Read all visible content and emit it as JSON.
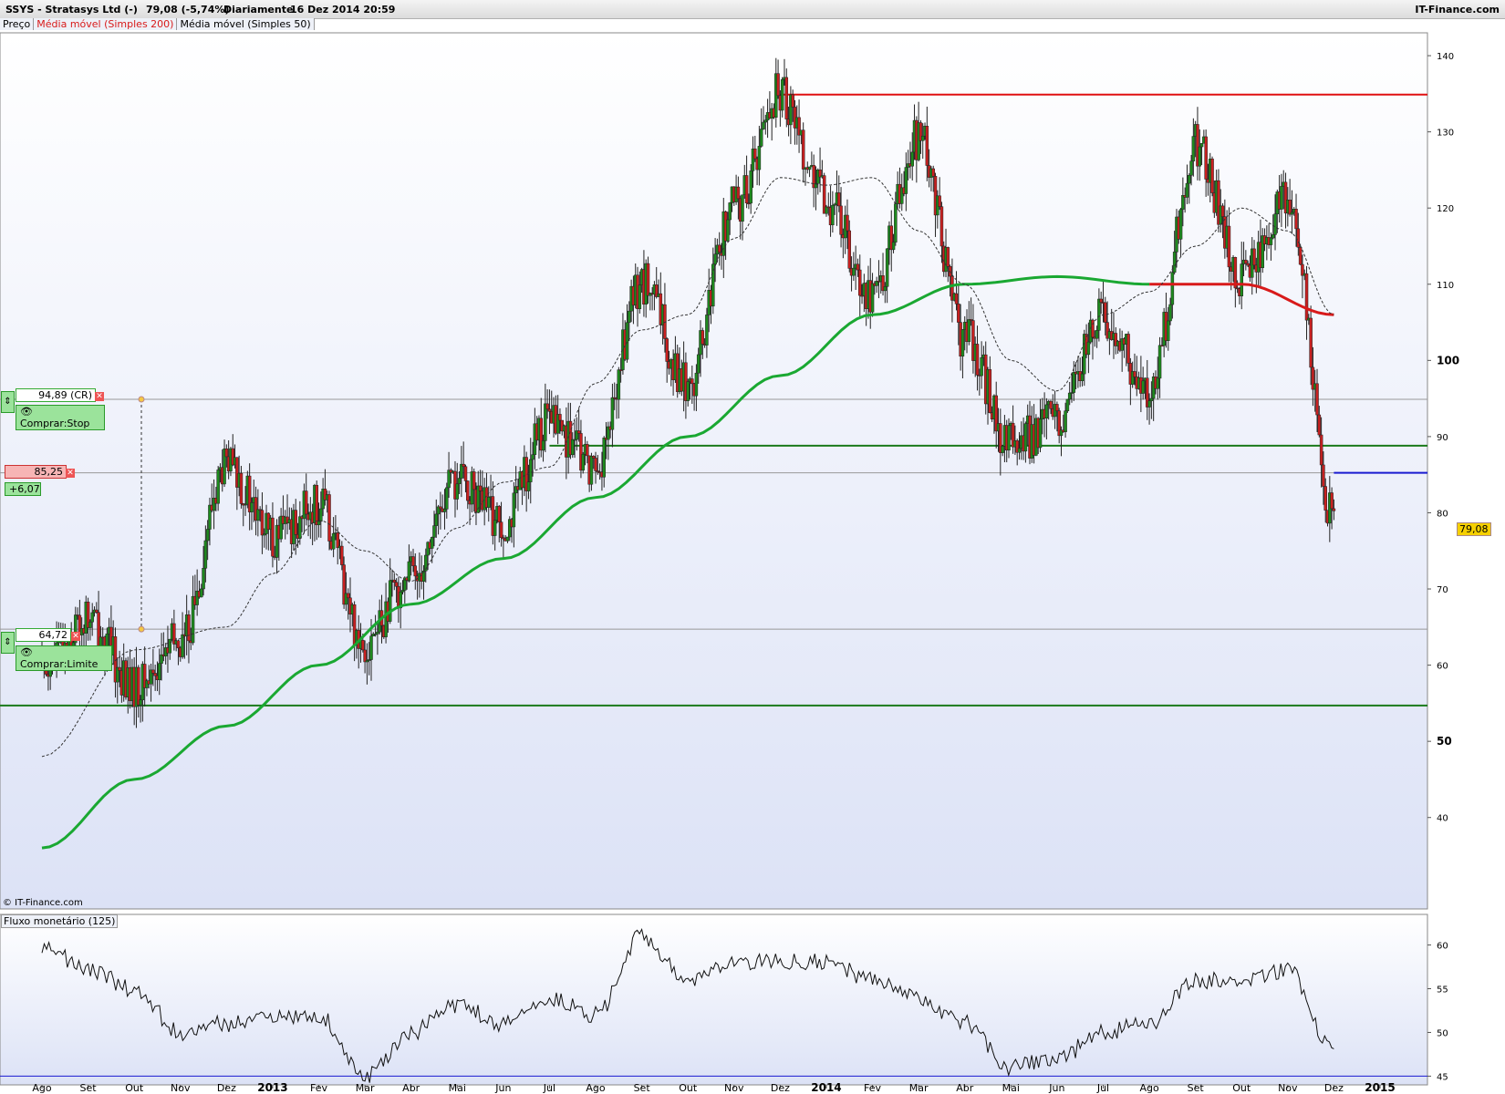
{
  "header": {
    "symbol": "SSYS - Stratasys Ltd (-)",
    "price": "79,08 (-5,74%)",
    "period": "Diariamente",
    "datetime": "16 Dez 2014 20:59",
    "brand": "IT-Finance.com"
  },
  "legend": {
    "price": "Preço",
    "ma200": "Média móvel (Simples 200)",
    "ma50": "Média móvel (Simples 50)"
  },
  "colors": {
    "ma200_up": "#1aa832",
    "ma200_down": "#d81a1a",
    "ma50": "#333333",
    "bg_top": "#ffffff",
    "bg_bottom": "#dce2f6",
    "candle_up": "#1e8a1e",
    "candle_down": "#c82020",
    "hline_green": "#1a7a1a",
    "hline_red": "#e01010",
    "hline_blue": "#1a1ad0"
  },
  "credit": "© IT-Finance.com",
  "orders": {
    "stop_value": "94,89 (CR)",
    "stop_label": "Comprar:Stop",
    "current_value": "85,25",
    "current_delta": "+6,07",
    "limit_value": "64,72",
    "limit_label": "Comprar:Limite",
    "last_price": "79,08"
  },
  "chart_data": [
    {
      "type": "candlestick",
      "title": "SSYS - Stratasys Ltd (-)",
      "xlabel": "",
      "ylabel": "",
      "x_ticks": [
        "Ago",
        "Set",
        "Out",
        "Nov",
        "Dez",
        "2013",
        "Fev",
        "Mar",
        "Abr",
        "Mai",
        "Jun",
        "Jul",
        "Ago",
        "Set",
        "Out",
        "Nov",
        "Dez",
        "2014",
        "Fev",
        "Mar",
        "Abr",
        "Mai",
        "Jun",
        "Jul",
        "Ago",
        "Set",
        "Out",
        "Nov",
        "Dez",
        "2015"
      ],
      "y_ticks": [
        40,
        50,
        60,
        70,
        80,
        90,
        100,
        110,
        120,
        130,
        140
      ],
      "ylim": [
        28,
        143
      ],
      "grid": false,
      "horizontal_lines": [
        {
          "value": 134.9,
          "color": "red",
          "from": "Dez 2013"
        },
        {
          "value": 94.89,
          "color": "gray"
        },
        {
          "value": 88.8,
          "color": "green",
          "from": "Jul 2013"
        },
        {
          "value": 85.25,
          "color": "gray"
        },
        {
          "value": 85.25,
          "color": "blue",
          "from": "Dez 2014"
        },
        {
          "value": 64.72,
          "color": "gray"
        },
        {
          "value": 54.7,
          "color": "green"
        }
      ],
      "series": [
        {
          "name": "Preço",
          "x": [
            "Ago 2012",
            "Set 2012",
            "Out 2012",
            "Nov 2012",
            "Dez 2012",
            "Jan 2013",
            "Fev 2013",
            "Mar 2013",
            "Abr 2013",
            "Mai 2013",
            "Jun 2013",
            "Jul 2013",
            "Ago 2013",
            "Set 2013",
            "Out 2013",
            "Nov 2013",
            "Dez 2013",
            "Jan 2014",
            "Fev 2014",
            "Mar 2014",
            "Abr 2014",
            "Mai 2014",
            "Jun 2014",
            "Jul 2014",
            "Ago 2014",
            "Set 2014",
            "Out 2014",
            "Nov 2014",
            "Dez 2014"
          ],
          "values": [
            60,
            66,
            57,
            63,
            86,
            77,
            81,
            63,
            72,
            84,
            79,
            92,
            86,
            110,
            97,
            120,
            135,
            121,
            109,
            129,
            103,
            89,
            92,
            106,
            96,
            128,
            111,
            121,
            79.08
          ]
        },
        {
          "name": "Média móvel (Simples 200)",
          "x": [
            "Ago 2012",
            "Out 2012",
            "Dez 2012",
            "Fev 2013",
            "Abr 2013",
            "Jun 2013",
            "Ago 2013",
            "Out 2013",
            "Dez 2013",
            "Fev 2014",
            "Abr 2014",
            "Jun 2014",
            "Ago 2014",
            "Out 2014",
            "Dez 2014"
          ],
          "values": [
            36,
            45,
            52,
            60,
            68,
            74,
            82,
            90,
            98,
            106,
            110,
            111,
            110,
            110,
            106
          ]
        },
        {
          "name": "Média móvel (Simples 50)",
          "x": [
            "Ago 2012",
            "Out 2012",
            "Dez 2012",
            "Jan 2013",
            "Fev 2013",
            "Mar 2013",
            "Abr 2013",
            "Mai 2013",
            "Jun 2013",
            "Jul 2013",
            "Ago 2013",
            "Set 2013",
            "Out 2013",
            "Nov 2013",
            "Dez 2013",
            "Jan 2014",
            "Fev 2014",
            "Mar 2014",
            "Abr 2014",
            "Mai 2014",
            "Jun 2014",
            "Jul 2014",
            "Ago 2014",
            "Set 2014",
            "Out 2014",
            "Nov 2014",
            "Dez 2014"
          ],
          "values": [
            48,
            62,
            65,
            72,
            79,
            75,
            71,
            78,
            84,
            86,
            97,
            104,
            106,
            116,
            124,
            123,
            124,
            117,
            110,
            100,
            96,
            106,
            109,
            115,
            120,
            117,
            106
          ]
        }
      ]
    },
    {
      "type": "line",
      "title": "Fluxo monetário (125)",
      "xlabel": "",
      "ylabel": "",
      "y_ticks": [
        45,
        50,
        55,
        60
      ],
      "ylim": [
        44,
        63.5
      ],
      "horizontal_lines": [
        {
          "value": 45,
          "color": "blue"
        }
      ],
      "series": [
        {
          "name": "Fluxo monetário (125)",
          "x": [
            "Ago 2012",
            "Set 2012",
            "Out 2012",
            "Nov 2012",
            "Dez 2012",
            "Jan 2013",
            "Fev 2013",
            "Mar 2013",
            "Abr 2013",
            "Mai 2013",
            "Jun 2013",
            "Jul 2013",
            "Ago 2013",
            "Set 2013",
            "Out 2013",
            "Nov 2013",
            "Dez 2013",
            "Jan 2014",
            "Fev 2014",
            "Mar 2014",
            "Abr 2014",
            "Mai 2014",
            "Jun 2014",
            "Jul 2014",
            "Ago 2014",
            "Set 2014",
            "Out 2014",
            "Nov 2014",
            "Dez 2014"
          ],
          "values": [
            60,
            57,
            55,
            50,
            51,
            52,
            52,
            45,
            50,
            53,
            51,
            54,
            52,
            61,
            56,
            58,
            58,
            58,
            56,
            54,
            51,
            46,
            47,
            50,
            51,
            56,
            56,
            57,
            48
          ]
        }
      ]
    }
  ]
}
